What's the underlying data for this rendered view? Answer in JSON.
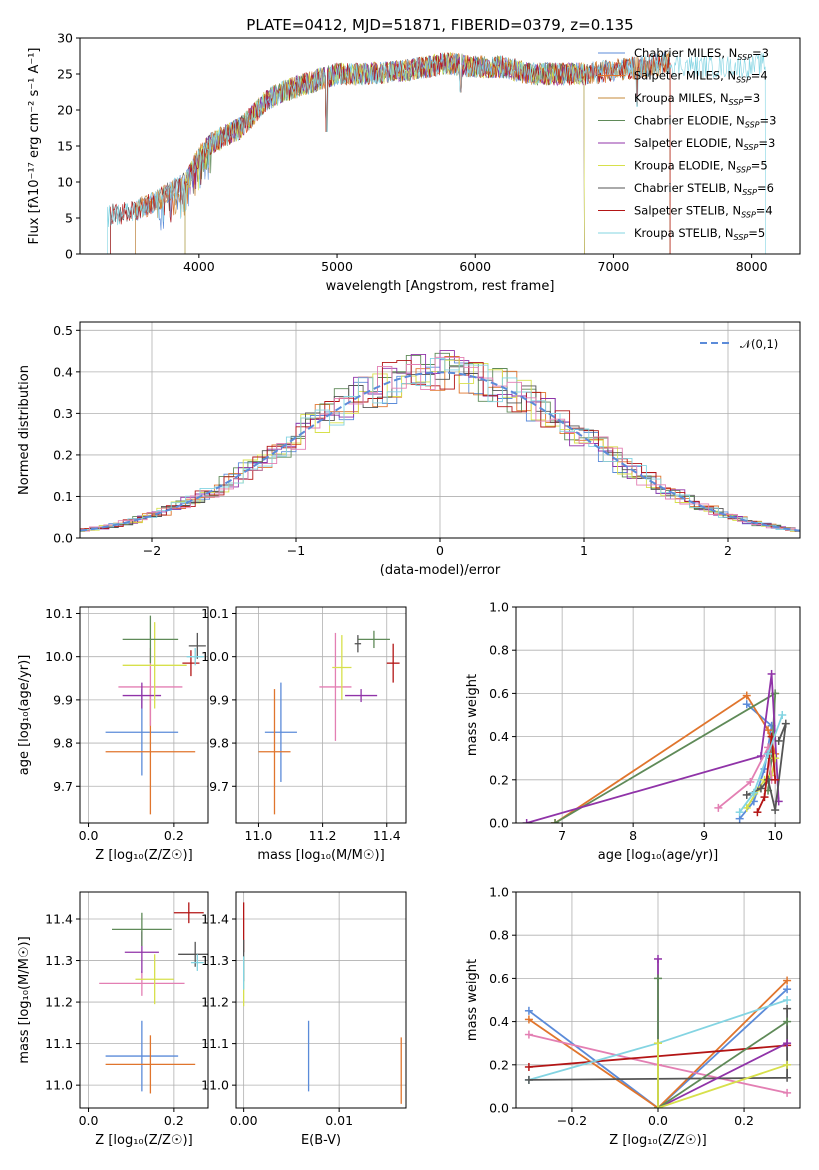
{
  "figure": {
    "title": "PLATE=0412, MJD=51871, FIBERID=0379, z=0.135"
  },
  "colors": {
    "Chabrier MILES": "#5b8bd9",
    "Salpeter MILES": "#e0752d",
    "Kroupa MILES": "#c58a3a",
    "Chabrier ELODIE": "#5f8a58",
    "Salpeter ELODIE": "#9033a8",
    "Kroupa ELODIE": "#d7e04b",
    "Chabrier STELIB": "#555555",
    "Salpeter STELIB": "#b31515",
    "Kroupa STELIB": "#83d4e2",
    "pink": "#e37fb3",
    "gauss": "#5b8bd9"
  },
  "chart_data": [
    {
      "type": "line",
      "panel": "spectrum",
      "title": "PLATE=0412, MJD=51871, FIBERID=0379, z=0.135",
      "xlabel": "wavelength [Angstrom, rest frame]",
      "ylabel": "Flux [fλ10⁻¹⁷ erg cm⁻² s⁻¹ A⁻¹]",
      "xlim": [
        3140,
        8350
      ],
      "ylim": [
        0,
        30
      ],
      "xticks": [
        4000,
        5000,
        6000,
        7000,
        8000
      ],
      "yticks": [
        0,
        5,
        10,
        15,
        20,
        25,
        30
      ],
      "grid": false,
      "legend_position": "upper-right",
      "series": [
        {
          "name": "Chabrier MILES, N_SSP=3",
          "key": "Chabrier MILES",
          "lo": 3540,
          "hi": 7410
        },
        {
          "name": "Salpeter MILES, N_SSP=4",
          "key": "Salpeter MILES",
          "lo": 3540,
          "hi": 7410
        },
        {
          "name": "Kroupa MILES, N_SSP=3",
          "key": "Kroupa MILES",
          "lo": 3540,
          "hi": 7410
        },
        {
          "name": "Chabrier ELODIE, N_SSP=3",
          "key": "Chabrier ELODIE",
          "lo": 3900,
          "hi": 6790
        },
        {
          "name": "Salpeter ELODIE, N_SSP=3",
          "key": "Salpeter ELODIE",
          "lo": 3900,
          "hi": 6790
        },
        {
          "name": "Kroupa ELODIE, N_SSP=5",
          "key": "Kroupa ELODIE",
          "lo": 3900,
          "hi": 6790
        },
        {
          "name": "Chabrier STELIB, N_SSP=6",
          "key": "Chabrier STELIB",
          "lo": 3360,
          "hi": 7410
        },
        {
          "name": "Salpeter STELIB, N_SSP=4",
          "key": "Salpeter STELIB",
          "lo": 3360,
          "hi": 7410
        },
        {
          "name": "Kroupa STELIB, N_SSP=5",
          "key": "Kroupa STELIB",
          "lo": 3340,
          "hi": 8100
        }
      ],
      "continuum": [
        [
          3340,
          5.3
        ],
        [
          3500,
          5.8
        ],
        [
          3600,
          6.5
        ],
        [
          3700,
          7.5
        ],
        [
          3800,
          8.8
        ],
        [
          3900,
          9.8
        ],
        [
          3950,
          11.5
        ],
        [
          4000,
          13.5
        ],
        [
          4100,
          15.5
        ],
        [
          4200,
          16.5
        ],
        [
          4300,
          17.5
        ],
        [
          4400,
          19.5
        ],
        [
          4500,
          21.5
        ],
        [
          4600,
          22.5
        ],
        [
          4800,
          23.8
        ],
        [
          5000,
          25
        ],
        [
          5200,
          25
        ],
        [
          5500,
          25.5
        ],
        [
          5800,
          26.5
        ],
        [
          6000,
          26
        ],
        [
          6200,
          26
        ],
        [
          6400,
          25
        ],
        [
          6600,
          25
        ],
        [
          6800,
          25
        ],
        [
          7000,
          25.5
        ],
        [
          7200,
          26
        ],
        [
          7400,
          26.5
        ],
        [
          7600,
          26
        ],
        [
          7800,
          26
        ],
        [
          8000,
          26
        ],
        [
          8100,
          26.5
        ]
      ],
      "features": [
        {
          "x": 4925,
          "y": 17
        },
        {
          "x": 5895,
          "y": 22.5
        },
        {
          "x": 7170,
          "y": 20.5
        }
      ]
    },
    {
      "type": "histogram",
      "panel": "residuals",
      "xlabel": "(data-model)/error",
      "ylabel": "Normed distribution",
      "xlim": [
        -2.5,
        2.5
      ],
      "ylim": [
        0,
        0.52
      ],
      "xticks": [
        -2,
        -1,
        0,
        1,
        2
      ],
      "yticks": [
        0.0,
        0.1,
        0.2,
        0.3,
        0.4,
        0.5
      ],
      "grid": true,
      "bin_width": 0.1,
      "legend_position": "upper-right",
      "series": [
        {
          "name": "𝒩(0,1)",
          "key": "gauss",
          "style": "dashed"
        }
      ],
      "histogram_series": [
        "Chabrier MILES",
        "Salpeter MILES",
        "Chabrier ELODIE",
        "Salpeter ELODIE",
        "Kroupa ELODIE",
        "Chabrier STELIB",
        "Salpeter STELIB",
        "Kroupa STELIB",
        "pink"
      ]
    },
    {
      "type": "scatter",
      "panel": "age-vs-Z",
      "xlabel": "Z [log₁₀(Z/Z☉)]",
      "ylabel": "age  [log₁₀(age/yr)]",
      "xlim": [
        -0.02,
        0.28
      ],
      "ylim": [
        9.615,
        10.115
      ],
      "xticks": [
        0.0,
        0.2
      ],
      "yticks": [
        9.7,
        9.8,
        9.9,
        10.0,
        10.1
      ],
      "grid": true,
      "series": [
        {
          "key": "Chabrier MILES",
          "x": 0.125,
          "y": 9.825,
          "ex": 0.085,
          "ey": 0.1
        },
        {
          "key": "Salpeter MILES",
          "x": 0.145,
          "y": 9.78,
          "ex": 0.105,
          "ey": 0.145
        },
        {
          "key": "pink",
          "x": 0.145,
          "y": 9.93,
          "ex": 0.075,
          "ey": 0.09
        },
        {
          "key": "Salpeter ELODIE",
          "x": 0.125,
          "y": 9.91,
          "ex": 0.045,
          "ey": 0.03
        },
        {
          "key": "Kroupa ELODIE",
          "x": 0.155,
          "y": 9.98,
          "ex": 0.075,
          "ey": 0.1
        },
        {
          "key": "Chabrier ELODIE",
          "x": 0.145,
          "y": 10.04,
          "ex": 0.065,
          "ey": 0.055
        },
        {
          "key": "Salpeter STELIB",
          "x": 0.24,
          "y": 9.985,
          "ex": 0.02,
          "ey": 0.03
        },
        {
          "key": "Chabrier STELIB",
          "x": 0.255,
          "y": 10.025,
          "ex": 0.02,
          "ey": 0.03
        },
        {
          "key": "Kroupa STELIB",
          "x": 0.25,
          "y": 10.0,
          "ex": 0.02,
          "ey": 0.02
        }
      ]
    },
    {
      "type": "scatter",
      "panel": "age-vs-mass",
      "xlabel": "mass [log₁₀(M/M☉)]",
      "xlim": [
        10.93,
        11.46
      ],
      "ylim": [
        9.615,
        10.115
      ],
      "xticks": [
        11.0,
        11.2,
        11.4
      ],
      "yticks": [
        9.7,
        9.8,
        9.9,
        10.0,
        10.1
      ],
      "grid": true,
      "series": [
        {
          "key": "Chabrier MILES",
          "x": 11.07,
          "y": 9.825,
          "ex": 0.05,
          "ey": 0.115
        },
        {
          "key": "Salpeter MILES",
          "x": 11.05,
          "y": 9.78,
          "ex": 0.05,
          "ey": 0.145
        },
        {
          "key": "pink",
          "x": 11.24,
          "y": 9.93,
          "ex": 0.05,
          "ey": 0.125
        },
        {
          "key": "Salpeter ELODIE",
          "x": 11.32,
          "y": 9.91,
          "ex": 0.05,
          "ey": 0.015
        },
        {
          "key": "Kroupa ELODIE",
          "x": 11.26,
          "y": 9.975,
          "ex": 0.03,
          "ey": 0.075
        },
        {
          "key": "Chabrier ELODIE",
          "x": 11.36,
          "y": 10.04,
          "ex": 0.05,
          "ey": 0.02
        },
        {
          "key": "Chabrier STELIB",
          "x": 11.31,
          "y": 10.03,
          "ex": 0.01,
          "ey": 0.02
        },
        {
          "key": "Salpeter STELIB",
          "x": 11.42,
          "y": 9.985,
          "ex": 0.02,
          "ey": 0.045
        }
      ]
    },
    {
      "type": "line",
      "panel": "weight-vs-age",
      "xlabel": "age  [log₁₀(age/yr)]",
      "ylabel": "mass weight",
      "xlim": [
        6.35,
        10.35
      ],
      "ylim": [
        0,
        1
      ],
      "xticks": [
        7,
        8,
        9,
        10
      ],
      "yticks": [
        0.0,
        0.2,
        0.4,
        0.6,
        0.8,
        1.0
      ],
      "grid": true,
      "series": [
        {
          "key": "Chabrier MILES",
          "points": [
            [
              9.5,
              0.02
            ],
            [
              9.7,
              0.1
            ],
            [
              9.85,
              0.25
            ],
            [
              9.95,
              0.45
            ],
            [
              9.6,
              0.55
            ]
          ]
        },
        {
          "key": "Salpeter MILES",
          "points": [
            [
              6.9,
              0.0
            ],
            [
              9.6,
              0.59
            ],
            [
              9.9,
              0.43
            ],
            [
              10.0,
              0.32
            ]
          ]
        },
        {
          "key": "Chabrier ELODIE",
          "points": [
            [
              6.9,
              0.0
            ],
            [
              10.0,
              0.6
            ],
            [
              9.95,
              0.3
            ],
            [
              9.9,
              0.15
            ]
          ]
        },
        {
          "key": "Salpeter ELODIE",
          "points": [
            [
              6.5,
              0.0
            ],
            [
              9.8,
              0.31
            ],
            [
              9.95,
              0.69
            ],
            [
              10.05,
              0.1
            ]
          ]
        },
        {
          "key": "Kroupa ELODIE",
          "points": [
            [
              9.6,
              0.07
            ],
            [
              9.75,
              0.15
            ],
            [
              9.85,
              0.2
            ],
            [
              9.95,
              0.22
            ],
            [
              10.0,
              0.3
            ]
          ]
        },
        {
          "key": "pink",
          "points": [
            [
              9.2,
              0.07
            ],
            [
              9.65,
              0.19
            ],
            [
              9.9,
              0.35
            ],
            [
              9.95,
              0.2
            ]
          ]
        },
        {
          "key": "Chabrier STELIB",
          "points": [
            [
              9.6,
              0.13
            ],
            [
              9.8,
              0.16
            ],
            [
              9.9,
              0.2
            ],
            [
              10.0,
              0.06
            ],
            [
              10.15,
              0.46
            ],
            [
              10.05,
              0.38
            ]
          ]
        },
        {
          "key": "Salpeter STELIB",
          "points": [
            [
              9.75,
              0.05
            ],
            [
              9.85,
              0.12
            ],
            [
              9.95,
              0.4
            ],
            [
              10.0,
              0.2
            ]
          ]
        },
        {
          "key": "Kroupa STELIB",
          "points": [
            [
              9.5,
              0.05
            ],
            [
              9.7,
              0.14
            ],
            [
              9.9,
              0.32
            ],
            [
              10.1,
              0.5
            ]
          ]
        }
      ]
    },
    {
      "type": "scatter",
      "panel": "mass-vs-Z",
      "xlabel": "Z [log₁₀(Z/Z☉)]",
      "ylabel": "mass [log₁₀(M/M☉)]",
      "xlim": [
        -0.02,
        0.28
      ],
      "ylim": [
        10.945,
        11.465
      ],
      "xticks": [
        0.0,
        0.2
      ],
      "yticks": [
        11.0,
        11.1,
        11.2,
        11.3,
        11.4
      ],
      "grid": true,
      "series": [
        {
          "key": "Chabrier MILES",
          "x": 0.125,
          "y": 11.07,
          "ex": 0.085,
          "ey": 0.085
        },
        {
          "key": "Salpeter MILES",
          "x": 0.145,
          "y": 11.05,
          "ex": 0.105,
          "ey": 0.07
        },
        {
          "key": "pink",
          "x": 0.125,
          "y": 11.245,
          "ex": 0.1,
          "ey": 0.03
        },
        {
          "key": "Kroupa ELODIE",
          "x": 0.155,
          "y": 11.255,
          "ex": 0.045,
          "ey": 0.06
        },
        {
          "key": "Salpeter ELODIE",
          "x": 0.125,
          "y": 11.32,
          "ex": 0.04,
          "ey": 0.05
        },
        {
          "key": "Chabrier ELODIE",
          "x": 0.125,
          "y": 11.375,
          "ex": 0.07,
          "ey": 0.04
        },
        {
          "key": "Salpeter STELIB",
          "x": 0.235,
          "y": 11.415,
          "ex": 0.035,
          "ey": 0.025
        },
        {
          "key": "Chabrier STELIB",
          "x": 0.25,
          "y": 11.315,
          "ex": 0.04,
          "ey": 0.03
        },
        {
          "key": "Kroupa STELIB",
          "x": 0.255,
          "y": 11.295,
          "ex": 0.015,
          "ey": 0.02
        }
      ]
    },
    {
      "type": "scatter",
      "panel": "mass-vs-EBV",
      "xlabel": "E(B-V)",
      "xlim": [
        -0.0008,
        0.017
      ],
      "ylim": [
        10.945,
        11.465
      ],
      "xticks": [
        0.0,
        0.01
      ],
      "yticks": [
        11.0,
        11.1,
        11.2,
        11.3,
        11.4
      ],
      "grid": true,
      "series": [
        {
          "key": "Chabrier MILES",
          "x": 0.0068,
          "y": 11.07,
          "ex": 0,
          "ey": 0.085
        },
        {
          "key": "Salpeter MILES",
          "x": 0.0165,
          "y": 11.035,
          "ex": 0,
          "ey": 0.08
        },
        {
          "key": "Kroupa ELODIE",
          "x": 0.0,
          "y": 11.25,
          "ex": 0,
          "ey": 0.06
        },
        {
          "key": "Salpeter STELIB",
          "x": 0.0,
          "y": 11.38,
          "ex": 0,
          "ey": 0.06
        },
        {
          "key": "Chabrier STELIB",
          "x": 0.0,
          "y": 11.3,
          "ex": 0,
          "ey": 0.05
        },
        {
          "key": "Kroupa STELIB",
          "x": 0.0,
          "y": 11.27,
          "ex": 0,
          "ey": 0.04
        }
      ]
    },
    {
      "type": "line",
      "panel": "weight-vs-Z",
      "xlabel": "Z [log₁₀(Z/Z☉)]",
      "ylabel": "mass weight",
      "xlim": [
        -0.33,
        0.33
      ],
      "ylim": [
        0,
        1
      ],
      "xticks": [
        -0.2,
        0.0,
        0.2
      ],
      "yticks": [
        0.0,
        0.2,
        0.4,
        0.6,
        0.8,
        1.0
      ],
      "grid": true,
      "series": [
        {
          "key": "Chabrier MILES",
          "points": [
            [
              -0.3,
              0.45
            ],
            [
              0.0,
              0.0
            ],
            [
              0.3,
              0.55
            ]
          ]
        },
        {
          "key": "Salpeter MILES",
          "points": [
            [
              -0.3,
              0.41
            ],
            [
              0.0,
              0.0
            ],
            [
              0.3,
              0.59
            ]
          ]
        },
        {
          "key": "pink",
          "points": [
            [
              -0.3,
              0.34
            ],
            [
              0.0,
              0.2
            ],
            [
              0.3,
              0.07
            ]
          ]
        },
        {
          "key": "Salpeter STELIB",
          "points": [
            [
              -0.3,
              0.19
            ],
            [
              0.3,
              0.29
            ]
          ]
        },
        {
          "key": "Kroupa STELIB",
          "points": [
            [
              -0.3,
              0.13
            ],
            [
              0.0,
              0.3
            ],
            [
              0.3,
              0.5
            ]
          ]
        },
        {
          "key": "Chabrier STELIB",
          "points": [
            [
              -0.3,
              0.13
            ],
            [
              0.3,
              0.14
            ],
            [
              0.3,
              0.46
            ]
          ]
        },
        {
          "key": "Salpeter ELODIE",
          "points": [
            [
              0.0,
              0.69
            ],
            [
              0.0,
              0.0
            ],
            [
              0.3,
              0.3
            ]
          ]
        },
        {
          "key": "Chabrier ELODIE",
          "points": [
            [
              0.0,
              0.6
            ],
            [
              0.0,
              0.0
            ],
            [
              0.3,
              0.4
            ]
          ]
        },
        {
          "key": "Kroupa ELODIE",
          "points": [
            [
              0.0,
              0.3
            ],
            [
              0.0,
              0.0
            ],
            [
              0.3,
              0.2
            ]
          ]
        }
      ]
    }
  ]
}
